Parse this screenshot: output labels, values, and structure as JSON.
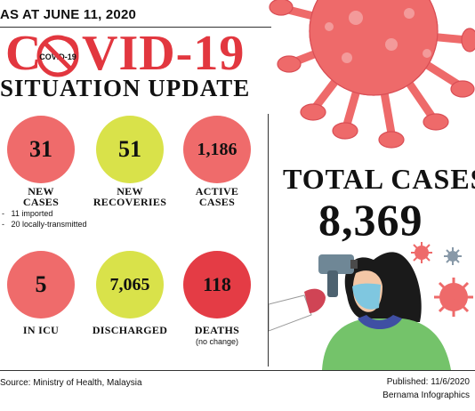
{
  "header": {
    "date_line": "AS AT JUNE 11, 2020",
    "title": "COVID-19",
    "subtitle": "SITUATION UPDATE",
    "badge_text": "COVID-19"
  },
  "stats": {
    "new_cases": {
      "value": "31",
      "label_1": "NEW",
      "label_2": "CASES"
    },
    "new_recoveries": {
      "value": "51",
      "label_1": "NEW",
      "label_2": "RECOVERIES"
    },
    "active_cases": {
      "value": "1,186",
      "label_1": "ACTIVE",
      "label_2": "CASES"
    },
    "in_icu": {
      "value": "5",
      "label": "IN ICU"
    },
    "discharged": {
      "value": "7,065",
      "label": "DISCHARGED"
    },
    "deaths": {
      "value": "118",
      "label": "DEATHS",
      "note": "(no change)"
    }
  },
  "new_cases_breakdown": [
    "11 imported",
    "20 locally-transmitted"
  ],
  "total": {
    "label": "TOTAL CASES",
    "value": "8,369"
  },
  "footer": {
    "source": "Source: Ministry of Health, Malaysia",
    "published": "Published: 11/6/2020",
    "credit": "Bernama Infographics"
  },
  "colors": {
    "accent_red": "#e2373f",
    "circle_red": "#ef6b6b",
    "circle_yellow": "#d9e24a",
    "deaths_red": "#e43c45",
    "virus": "#ee6a6a"
  },
  "illustrations": [
    "virus-icon",
    "thermometer-scan-illustration",
    "ban-icon"
  ]
}
